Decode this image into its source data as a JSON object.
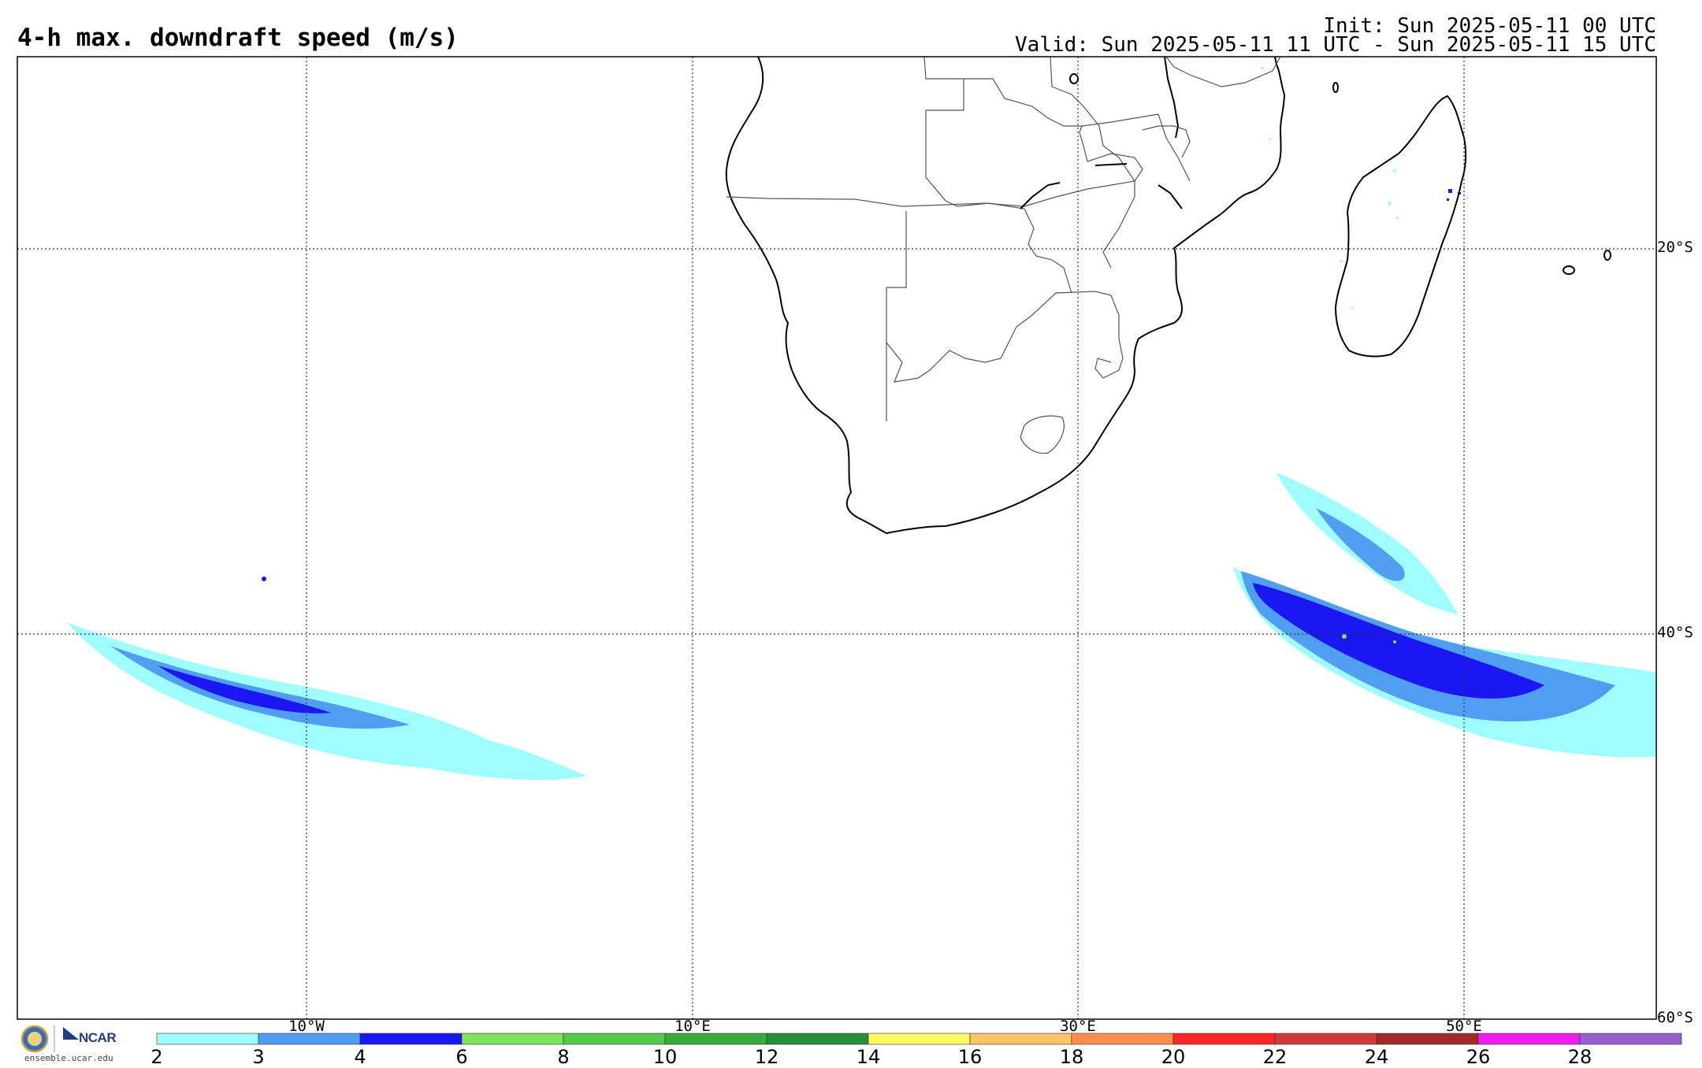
{
  "title": "4-h max. downdraft speed (m/s)",
  "init": "Init: Sun 2025-05-11 00 UTC",
  "valid": "Valid: Sun 2025-05-11 11 UTC - Sun 2025-05-11 15 UTC",
  "lat_labels": [
    "20°S",
    "40°S",
    "60°S"
  ],
  "lon_labels": [
    "10°W",
    "10°E",
    "30°E",
    "50°E"
  ],
  "colorbar": {
    "ticks": [
      "2",
      "3",
      "4",
      "6",
      "8",
      "10",
      "12",
      "14",
      "16",
      "18",
      "20",
      "22",
      "24",
      "26",
      "28"
    ],
    "colors": [
      "#9ffcff",
      "#4f9ef2",
      "#1b17f2",
      "#7ee35c",
      "#55c94a",
      "#37ab3c",
      "#268f3a",
      "#fffb63",
      "#ffc46a",
      "#ff8e4c",
      "#ff2626",
      "#cf3a3a",
      "#a02a2a",
      "#ef1eef",
      "#9a5fcf"
    ]
  },
  "logo": {
    "org": "NCAR",
    "url": "ensemble.ucar.edu"
  }
}
